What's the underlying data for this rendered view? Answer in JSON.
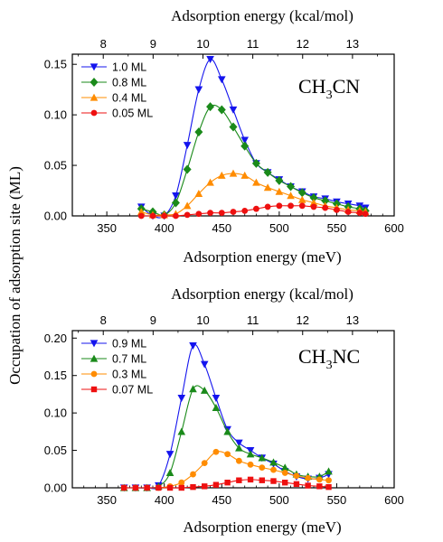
{
  "y_title": "Occupation of adsorption site (ML)",
  "chart_data": [
    {
      "type": "scatter",
      "label": "CH3CN",
      "label_main": "CH",
      "label_sub": "3",
      "label_rest": "CN",
      "xlabel": "Adsorption energy (meV)",
      "top_xlabel": "Adsorption energy (kcal/mol)",
      "xlim": [
        320,
        600
      ],
      "ylim": [
        0,
        0.16
      ],
      "x_ticks": [
        350,
        400,
        450,
        500,
        550,
        600
      ],
      "x_tick_labels": [
        "350",
        "400",
        "450",
        "500",
        "550",
        "600"
      ],
      "y_ticks": [
        0,
        0.05,
        0.1,
        0.15
      ],
      "y_tick_labels": [
        "0.00",
        "0.05",
        "0.10",
        "0.15"
      ],
      "top_ticks": [
        8,
        9,
        10,
        11,
        12,
        13
      ],
      "top_tick_labels": [
        "8",
        "9",
        "10",
        "11",
        "12",
        "13"
      ],
      "grid": false,
      "legend_position": "top-left",
      "series": [
        {
          "name": "1.0 ML",
          "color": "#1414ee",
          "marker": "triangle-down",
          "x": [
            380,
            390,
            400,
            410,
            420,
            430,
            440,
            450,
            460,
            470,
            480,
            490,
            500,
            510,
            520,
            530,
            540,
            550,
            560,
            570,
            575
          ],
          "y": [
            0.009,
            0.0,
            0.0,
            0.02,
            0.07,
            0.125,
            0.155,
            0.135,
            0.105,
            0.075,
            0.052,
            0.043,
            0.036,
            0.029,
            0.024,
            0.019,
            0.017,
            0.014,
            0.012,
            0.01,
            0.008
          ]
        },
        {
          "name": "0.8 ML",
          "color": "#1a8a1a",
          "marker": "diamond",
          "x": [
            380,
            390,
            400,
            410,
            420,
            430,
            440,
            450,
            460,
            470,
            480,
            490,
            500,
            510,
            520,
            530,
            540,
            550,
            560,
            570,
            575
          ],
          "y": [
            0.007,
            0.004,
            0.001,
            0.013,
            0.046,
            0.083,
            0.108,
            0.105,
            0.088,
            0.069,
            0.052,
            0.043,
            0.035,
            0.029,
            0.023,
            0.018,
            0.015,
            0.012,
            0.009,
            0.007,
            0.005
          ]
        },
        {
          "name": "0.4 ML",
          "color": "#ff8c00",
          "marker": "triangle-up",
          "x": [
            380,
            390,
            400,
            410,
            420,
            430,
            440,
            450,
            460,
            470,
            480,
            490,
            500,
            510,
            520,
            530,
            540,
            550,
            560,
            570,
            575
          ],
          "y": [
            0.004,
            0.001,
            0.001,
            0.002,
            0.01,
            0.022,
            0.033,
            0.04,
            0.042,
            0.04,
            0.033,
            0.028,
            0.024,
            0.02,
            0.016,
            0.013,
            0.01,
            0.008,
            0.006,
            0.005,
            0.004
          ]
        },
        {
          "name": "0.05 ML",
          "color": "#ee1010",
          "marker": "circle",
          "x": [
            380,
            390,
            400,
            410,
            420,
            430,
            440,
            450,
            460,
            470,
            480,
            490,
            500,
            510,
            520,
            530,
            540,
            550,
            560,
            570,
            575
          ],
          "y": [
            0.0,
            0.0,
            0.0,
            0.0,
            0.001,
            0.002,
            0.003,
            0.003,
            0.004,
            0.005,
            0.007,
            0.009,
            0.01,
            0.01,
            0.01,
            0.009,
            0.008,
            0.006,
            0.004,
            0.003,
            0.002
          ]
        }
      ]
    },
    {
      "type": "scatter",
      "label": "CH3NC",
      "label_main": "CH",
      "label_sub": "3",
      "label_rest": "NC",
      "xlabel": "Adsorption energy (meV)",
      "top_xlabel": "Adsorption energy (kcal/mol)",
      "xlim": [
        320,
        600
      ],
      "ylim": [
        0,
        0.21
      ],
      "x_ticks": [
        350,
        400,
        450,
        500,
        550,
        600
      ],
      "x_tick_labels": [
        "350",
        "400",
        "450",
        "500",
        "550",
        "600"
      ],
      "y_ticks": [
        0,
        0.05,
        0.1,
        0.15,
        0.2
      ],
      "y_tick_labels": [
        "0.00",
        "0.05",
        "0.10",
        "0.15",
        "0.20"
      ],
      "top_ticks": [
        8,
        9,
        10,
        11,
        12,
        13
      ],
      "top_tick_labels": [
        "8",
        "9",
        "10",
        "11",
        "12",
        "13"
      ],
      "grid": false,
      "legend_position": "top-left",
      "series": [
        {
          "name": "0.9 ML",
          "color": "#1414ee",
          "marker": "triangle-down",
          "x": [
            365,
            375,
            385,
            395,
            405,
            415,
            425,
            435,
            445,
            455,
            465,
            475,
            485,
            495,
            505,
            515,
            525,
            535,
            543
          ],
          "y": [
            0.0,
            0.0,
            0.0,
            0.003,
            0.045,
            0.12,
            0.19,
            0.165,
            0.12,
            0.078,
            0.06,
            0.05,
            0.04,
            0.032,
            0.022,
            0.015,
            0.012,
            0.013,
            0.018
          ]
        },
        {
          "name": "0.7 ML",
          "color": "#1a8a1a",
          "marker": "triangle-up",
          "x": [
            365,
            375,
            385,
            395,
            405,
            415,
            425,
            435,
            445,
            455,
            465,
            475,
            485,
            495,
            505,
            515,
            525,
            535,
            543
          ],
          "y": [
            0.0,
            0.0,
            0.0,
            0.002,
            0.02,
            0.075,
            0.132,
            0.13,
            0.107,
            0.075,
            0.053,
            0.045,
            0.04,
            0.034,
            0.027,
            0.018,
            0.015,
            0.015,
            0.022
          ]
        },
        {
          "name": "0.3 ML",
          "color": "#ff8c00",
          "marker": "circle",
          "x": [
            365,
            375,
            385,
            395,
            405,
            415,
            425,
            435,
            445,
            455,
            465,
            475,
            485,
            495,
            505,
            515,
            525,
            535,
            543
          ],
          "y": [
            0.0,
            0.0,
            0.0,
            0.0,
            0.002,
            0.007,
            0.018,
            0.033,
            0.048,
            0.045,
            0.036,
            0.031,
            0.027,
            0.024,
            0.02,
            0.016,
            0.013,
            0.011,
            0.01
          ]
        },
        {
          "name": "0.07 ML",
          "color": "#ee1010",
          "marker": "square",
          "x": [
            365,
            375,
            385,
            395,
            405,
            415,
            425,
            435,
            445,
            455,
            465,
            475,
            485,
            495,
            505,
            515,
            525,
            535,
            543
          ],
          "y": [
            0.0,
            0.0,
            0.0,
            0.0,
            0.0,
            0.0,
            0.001,
            0.002,
            0.004,
            0.007,
            0.01,
            0.011,
            0.01,
            0.009,
            0.007,
            0.005,
            0.003,
            0.002,
            0.001
          ]
        }
      ]
    }
  ]
}
